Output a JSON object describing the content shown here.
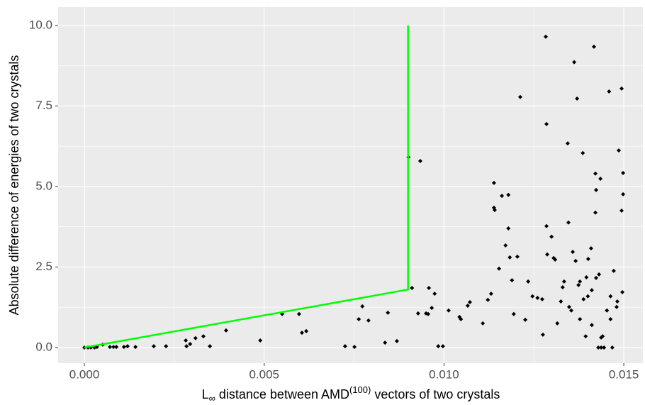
{
  "chart_data": {
    "type": "scatter",
    "y_label": "Absolute difference of energies of two crystals",
    "x_label": [
      "L",
      "∞",
      " distance between AMD",
      "(100)",
      " vectors of two crystals"
    ],
    "points": {
      "color": "#000000",
      "x": [
        0,
        0.0001,
        0.00018,
        0.00028,
        0.00035,
        0.00051,
        0.00071,
        0.00081,
        0.00089,
        0.0011,
        0.0012,
        0.00142,
        0.00193,
        0.00227,
        0.00282,
        0.00284,
        0.00294,
        0.00309,
        0.00331,
        0.00349,
        0.00394,
        0.00489,
        0.0055,
        0.00597,
        0.00605,
        0.00617,
        0.00725,
        0.00751,
        0.00763,
        0.00773,
        0.0079,
        0.00836,
        0.00844,
        0.00869,
        0.00901,
        0.00911,
        0.00928,
        0.00934,
        0.0095,
        0.00956,
        0.00958,
        0.00966,
        0.00974,
        0.00984,
        0.00997,
        0.01013,
        0.01043,
        0.01047,
        0.01066,
        0.01072,
        0.01108,
        0.01122,
        0.01131,
        0.01139,
        0.01139,
        0.01141,
        0.01153,
        0.01161,
        0.01171,
        0.01179,
        0.01179,
        0.01183,
        0.01189,
        0.01194,
        0.01204,
        0.01212,
        0.01226,
        0.01234,
        0.01246,
        0.0126,
        0.01273,
        0.01275,
        0.01285,
        0.01285,
        0.01287,
        0.01299,
        0.01305,
        0.01309,
        0.01315,
        0.01325,
        0.0133,
        0.01334,
        0.01344,
        0.01346,
        0.01348,
        0.01354,
        0.01358,
        0.01362,
        0.01366,
        0.0137,
        0.01374,
        0.01378,
        0.01378,
        0.01386,
        0.01388,
        0.01394,
        0.01396,
        0.014,
        0.01401,
        0.01409,
        0.01411,
        0.01411,
        0.01417,
        0.01421,
        0.01421,
        0.01423,
        0.01423,
        0.01429,
        0.01431,
        0.01435,
        0.01437,
        0.01437,
        0.01441,
        0.01445,
        0.01453,
        0.01459,
        0.01463,
        0.01463,
        0.01468,
        0.01472,
        0.0148,
        0.01482,
        0.01486,
        0.01494,
        0.01496,
        0.01498,
        0.01498,
        0.01283,
        0.01494
      ],
      "y": [
        0,
        0,
        0,
        0,
        0.02,
        0.09,
        0.02,
        0.02,
        0.02,
        0.02,
        0.04,
        0.02,
        0.04,
        0.04,
        0.22,
        0.04,
        0.11,
        0.29,
        0.35,
        0.04,
        0.53,
        0.22,
        1.04,
        1.04,
        0.46,
        0.51,
        0.04,
        0.02,
        0.88,
        1.28,
        0.84,
        0.15,
        1.08,
        0.2,
        5.91,
        1.85,
        1.06,
        5.79,
        1.06,
        1.04,
        1.85,
        1.23,
        1.67,
        0.04,
        0.04,
        1.15,
        0.95,
        0.88,
        1.3,
        1.41,
        0.75,
        1.48,
        1.67,
        5.11,
        4.34,
        4.27,
        2.45,
        4.71,
        3.17,
        4.74,
        3.7,
        2.8,
        2.09,
        1.04,
        2.82,
        7.78,
        0.86,
        2.05,
        1.59,
        1.54,
        1.5,
        0.4,
        6.94,
        3.77,
        2.89,
        3.44,
        2.78,
        2.73,
        0.75,
        1.43,
        1.87,
        2.05,
        6.34,
        3.88,
        1.26,
        1.15,
        2.97,
        8.86,
        2.69,
        7.73,
        1.94,
        2.05,
        0.88,
        6.04,
        1.5,
        0.35,
        2.18,
        1.59,
        2.75,
        3.08,
        0.7,
        1.78,
        9.34,
        5.4,
        4.19,
        4.89,
        2.16,
        0,
        2.27,
        5.24,
        0.31,
        0,
        0.35,
        0,
        1.15,
        7.95,
        0.88,
        1.59,
        0,
        2.38,
        1.26,
        1.43,
        6.12,
        4.25,
        1.72,
        4.76,
        5.42,
        9.65,
        8.04
      ]
    },
    "line": {
      "color": "#00ff00",
      "x": [
        0,
        0.009,
        0.009
      ],
      "y": [
        0,
        1.8,
        10
      ]
    },
    "xlim": [
      -0.00073,
      0.01553
    ],
    "ylim": [
      -0.485,
      10.57
    ],
    "xticks": [
      {
        "value": 0,
        "label": "0.000"
      },
      {
        "value": 0.005,
        "label": "0.005"
      },
      {
        "value": 0.01,
        "label": "0.010"
      },
      {
        "value": 0.015,
        "label": "0.015"
      }
    ],
    "yticks": [
      {
        "value": 0,
        "label": "0.0"
      },
      2.5,
      {
        "value": 5,
        "label": "5.0"
      },
      7.5,
      {
        "value": 10,
        "label": "10.0"
      }
    ],
    "x_minor_ticks": [
      0.0025,
      0.0075,
      0.0125
    ],
    "y_minor_ticks": [
      1.25,
      3.75,
      6.25,
      8.75
    ],
    "grid": true
  }
}
